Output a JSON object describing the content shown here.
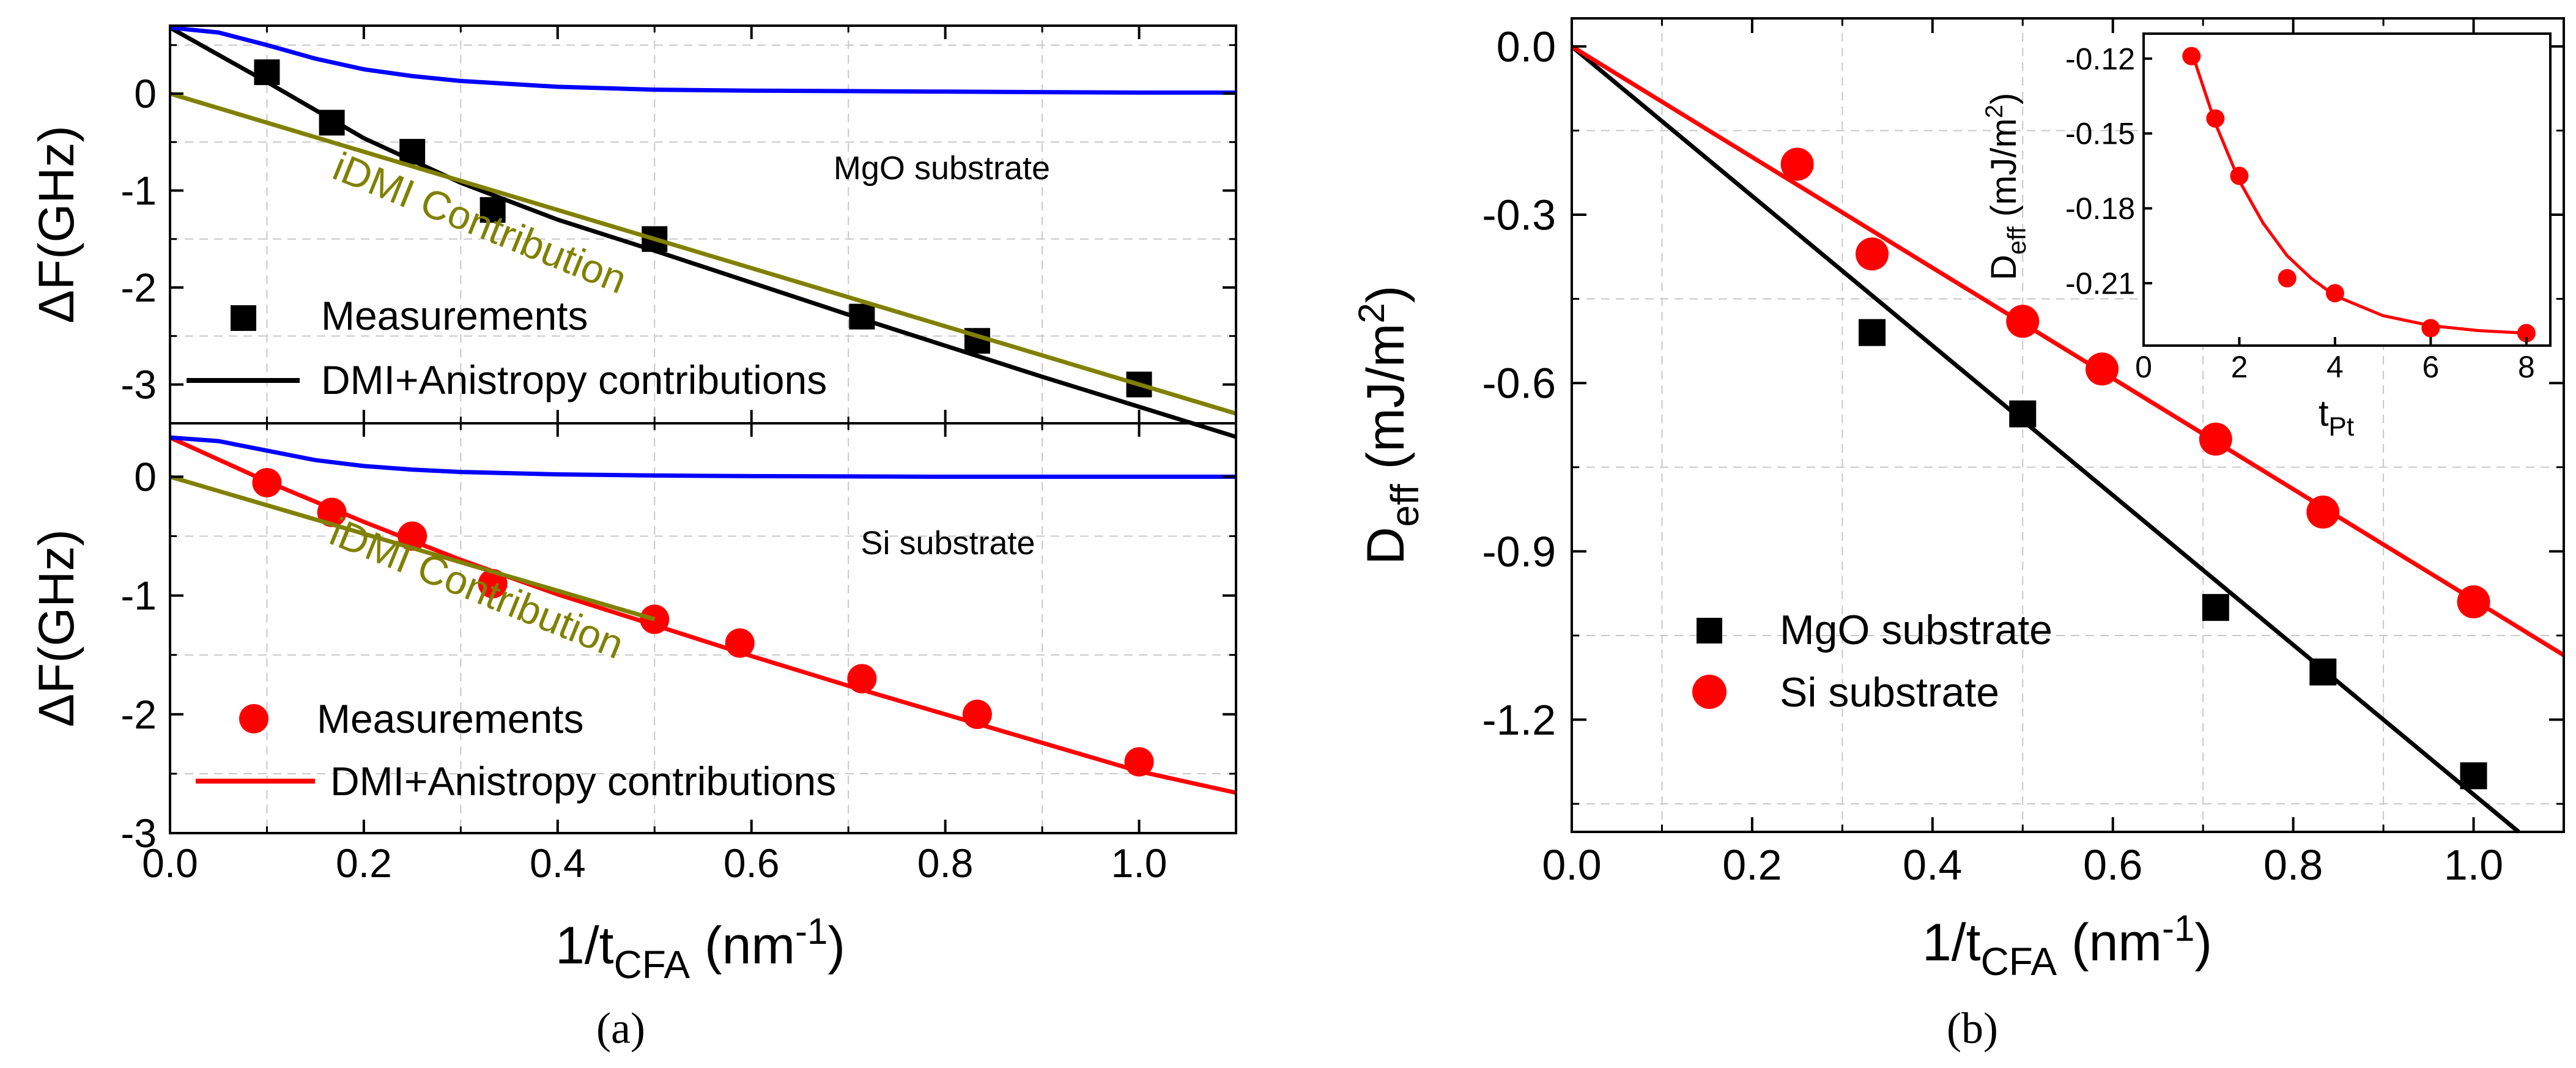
{
  "figure": {
    "caption_a": "(a)",
    "caption_b": "(b)"
  },
  "chart_data": [
    {
      "id": "a_top",
      "type": "scatter",
      "ylabel": "ΔF(GHz)",
      "xlim": [
        0,
        1.1
      ],
      "ylim": [
        -3.4,
        0.7
      ],
      "yticks": [
        0,
        -1,
        -2,
        -3
      ],
      "annotation": "MgO substrate",
      "series": [
        {
          "name": "Measurements",
          "kind": "scatter",
          "marker": "square",
          "color": "#000000",
          "x": [
            0.1,
            0.167,
            0.25,
            0.333,
            0.5,
            0.714,
            0.833,
            1.0
          ],
          "y": [
            0.22,
            -0.3,
            -0.6,
            -1.2,
            -1.5,
            -2.3,
            -2.55,
            -3.0
          ]
        },
        {
          "name": "DMI+Anistropy contributions",
          "kind": "line",
          "color": "#000000",
          "x": [
            0,
            0.1,
            0.2,
            0.3,
            0.4,
            0.5,
            0.6,
            0.7,
            0.8,
            0.9,
            1.0,
            1.1
          ],
          "y": [
            0.68,
            0.12,
            -0.46,
            -0.92,
            -1.3,
            -1.62,
            -1.95,
            -2.28,
            -2.6,
            -2.92,
            -3.23,
            -3.54
          ]
        },
        {
          "name": "iDMI Contribution",
          "kind": "line",
          "color": "#808000",
          "x": [
            0,
            1.1
          ],
          "y": [
            0,
            -3.3
          ]
        },
        {
          "kind": "line",
          "color": "#0000ff",
          "x": [
            0,
            0.05,
            0.1,
            0.15,
            0.2,
            0.25,
            0.3,
            0.4,
            0.5,
            0.6,
            0.8,
            1.0,
            1.1
          ],
          "y": [
            0.68,
            0.63,
            0.5,
            0.36,
            0.25,
            0.18,
            0.13,
            0.07,
            0.04,
            0.03,
            0.02,
            0.01,
            0.01
          ]
        }
      ]
    },
    {
      "id": "a_bottom",
      "type": "scatter",
      "ylabel": "ΔF(GHz)",
      "xlabel": "1/t",
      "xlabel_sub": "CFA",
      "xlabel_unit": " (nm",
      "xlabel_sup": "-1",
      "xlabel_close": ")",
      "xlim": [
        0,
        1.1
      ],
      "ylim": [
        -3,
        0.45
      ],
      "xticks": [
        0.0,
        0.2,
        0.4,
        0.6,
        0.8,
        1.0
      ],
      "xticklabels": [
        "0.0",
        "0.2",
        "0.4",
        "0.6",
        "0.8",
        "1.0"
      ],
      "yticks": [
        0,
        -1,
        -2,
        -3
      ],
      "annotation": "Si substrate",
      "series": [
        {
          "name": "Measurements",
          "kind": "scatter",
          "marker": "circle",
          "color": "#ff0000",
          "x": [
            0.1,
            0.167,
            0.25,
            0.333,
            0.5,
            0.588,
            0.714,
            0.833,
            1.0
          ],
          "y": [
            -0.05,
            -0.3,
            -0.5,
            -0.9,
            -1.2,
            -1.4,
            -1.7,
            -2.0,
            -2.4
          ]
        },
        {
          "name": "DMI+Anistropy contributions",
          "kind": "line",
          "color": "#ff0000",
          "x": [
            0,
            0.1,
            0.2,
            0.3,
            0.4,
            0.5,
            0.6,
            0.7,
            0.8,
            0.9,
            1.0,
            1.1
          ],
          "y": [
            0.33,
            -0.04,
            -0.38,
            -0.7,
            -0.99,
            -1.25,
            -1.51,
            -1.76,
            -2.0,
            -2.24,
            -2.48,
            -2.66
          ]
        },
        {
          "name": "iDMI Contribution",
          "kind": "line",
          "color": "#808000",
          "x": [
            0,
            0.5
          ],
          "y": [
            0,
            -1.2
          ]
        },
        {
          "kind": "line",
          "color": "#0000ff",
          "x": [
            0,
            0.05,
            0.1,
            0.15,
            0.2,
            0.25,
            0.3,
            0.4,
            0.5,
            0.6,
            0.8,
            1.0,
            1.1
          ],
          "y": [
            0.33,
            0.3,
            0.22,
            0.14,
            0.09,
            0.06,
            0.04,
            0.02,
            0.01,
            0.005,
            0.0,
            0.0,
            0.0
          ]
        }
      ]
    },
    {
      "id": "b",
      "type": "scatter",
      "ylabel": "D",
      "ylabel_sub": "eff",
      "ylabel_unit": " (mJ/m",
      "ylabel_sup": "2",
      "ylabel_close": ")",
      "xlabel": "1/t",
      "xlabel_sub": "CFA",
      "xlabel_unit": " (nm",
      "xlabel_sup": "-1",
      "xlabel_close": ")",
      "xlim": [
        0,
        1.1
      ],
      "ylim": [
        -1.4,
        0.05
      ],
      "xticks": [
        0.0,
        0.2,
        0.4,
        0.6,
        0.8,
        1.0
      ],
      "xticklabels": [
        "0.0",
        "0.2",
        "0.4",
        "0.6",
        "0.8",
        "1.0"
      ],
      "yticks": [
        0,
        -0.3,
        -0.6,
        -0.9,
        -1.2
      ],
      "yticklabels": [
        "0.0",
        "-0.3",
        "-0.6",
        "-0.9",
        "-1.2"
      ],
      "series": [
        {
          "name": "MgO substrate",
          "kind": "scatter",
          "marker": "square",
          "color": "#000000",
          "x": [
            0.333,
            0.5,
            0.714,
            0.833,
            1.0
          ],
          "y": [
            -0.51,
            -0.655,
            -1.0,
            -1.115,
            -1.3
          ]
        },
        {
          "name": "Si substrate",
          "kind": "scatter",
          "marker": "circle",
          "color": "#ff0000",
          "x": [
            0.25,
            0.333,
            0.5,
            0.588,
            0.714,
            0.833,
            1.0
          ],
          "y": [
            -0.21,
            -0.37,
            -0.49,
            -0.575,
            -0.7,
            -0.83,
            -0.99
          ]
        },
        {
          "kind": "line",
          "color": "#000000",
          "x": [
            0,
            1.05
          ],
          "y": [
            0,
            -1.4
          ]
        },
        {
          "kind": "line",
          "color": "#ff0000",
          "x": [
            0,
            1.1
          ],
          "y": [
            0,
            -1.085
          ]
        }
      ],
      "inset": {
        "ylabel": "D",
        "ylabel_sub": "eff",
        "ylabel_unit": " (mJ/m",
        "ylabel_sup": "2",
        "ylabel_close": ")",
        "xlabel": "t",
        "xlabel_sub": "Pt",
        "xlim": [
          0,
          8.5
        ],
        "ylim": [
          -0.235,
          -0.11
        ],
        "xticks": [
          0,
          2,
          4,
          6,
          8
        ],
        "xticklabels": [
          "0",
          "2",
          "4",
          "6",
          "8"
        ],
        "yticks": [
          -0.12,
          -0.15,
          -0.18,
          -0.21
        ],
        "yticklabels": [
          "-0.12",
          "-0.15",
          "-0.18",
          "-0.21"
        ],
        "series": [
          {
            "kind": "scatter",
            "marker": "circle",
            "color": "#ff0000",
            "x": [
              1,
              1.5,
              2,
              3,
              4,
              6,
              8
            ],
            "y": [
              -0.119,
              -0.144,
              -0.167,
              -0.208,
              -0.214,
              -0.228,
              -0.23
            ]
          },
          {
            "kind": "line",
            "color": "#ff0000",
            "x": [
              1,
              1.5,
              2,
              2.5,
              3,
              3.5,
              4,
              5,
              6,
              7,
              8
            ],
            "y": [
              -0.117,
              -0.146,
              -0.169,
              -0.186,
              -0.199,
              -0.208,
              -0.215,
              -0.223,
              -0.227,
              -0.229,
              -0.23
            ]
          }
        ]
      }
    }
  ],
  "panel_a_top": {
    "annotation": "MgO substrate",
    "idmi_label": "iDMI Contribution",
    "legend_meas": "Measurements",
    "legend_fit": "DMI+Anistropy contributions"
  },
  "panel_a_bottom": {
    "annotation": "Si substrate",
    "idmi_label": "iDMI Contribution",
    "legend_meas": "Measurements",
    "legend_fit": "DMI+Anistropy contributions"
  },
  "panel_b": {
    "legend_mgo": "MgO substrate",
    "legend_si": "Si substrate"
  }
}
